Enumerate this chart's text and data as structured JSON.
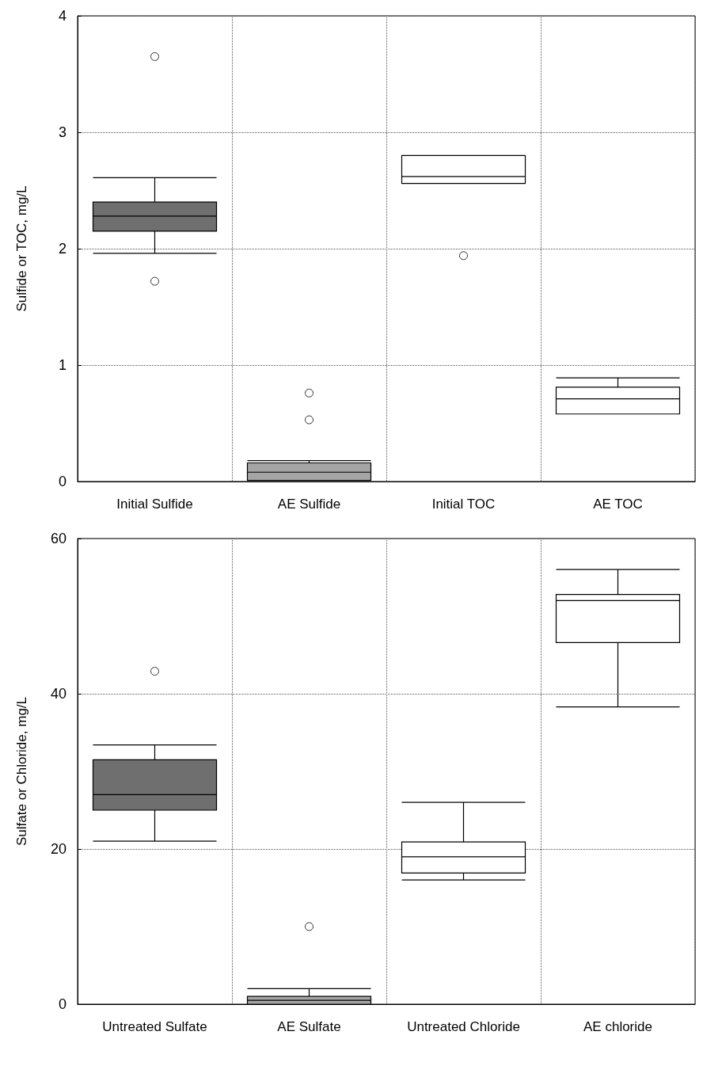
{
  "chart_data": [
    {
      "type": "box",
      "ylabel": "Sulfide or TOC, mg/L",
      "categories": [
        "Initial Sulfide",
        "AE Sulfide",
        "Initial TOC",
        "AE TOC"
      ],
      "boxes": [
        {
          "low": 1.96,
          "q1": 2.15,
          "median": 2.28,
          "q3": 2.4,
          "high": 2.61,
          "outliers": [
            3.65,
            1.72
          ]
        },
        {
          "low": 0.01,
          "q1": 0.01,
          "median": 0.08,
          "q3": 0.16,
          "high": 0.18,
          "outliers": [
            0.76,
            0.53
          ]
        },
        {
          "low": 2.56,
          "q1": 2.56,
          "median": 2.62,
          "q3": 2.8,
          "high": 2.8,
          "outliers": [
            1.94
          ]
        },
        {
          "low": 0.58,
          "q1": 0.58,
          "median": 0.71,
          "q3": 0.81,
          "high": 0.89
        }
      ],
      "colors": [
        "#6f6f6f",
        "#a5a5a5",
        "#ffffff",
        "#ffffff"
      ],
      "ylim": [
        0,
        4
      ],
      "yticks": [
        0,
        1,
        2,
        3,
        4
      ],
      "grid": true
    },
    {
      "type": "box",
      "ylabel": "Sulfate or Chloride, mg/L",
      "categories": [
        "Untreated Sulfate",
        "AE Sulfate",
        "Untreated Chloride",
        "AE chloride"
      ],
      "boxes": [
        {
          "low": 21,
          "q1": 25,
          "median": 27,
          "q3": 31.5,
          "high": 33.4,
          "outliers": [
            42.9
          ]
        },
        {
          "low": 0,
          "q1": 0,
          "median": 0.5,
          "q3": 1,
          "high": 2,
          "outliers": [
            10
          ]
        },
        {
          "low": 16,
          "q1": 16.9,
          "median": 19,
          "q3": 20.9,
          "high": 26
        },
        {
          "low": 38.3,
          "q1": 46.6,
          "median": 52,
          "q3": 52.8,
          "high": 56
        }
      ],
      "colors": [
        "#6f6f6f",
        "#a5a5a5",
        "#ffffff",
        "#ffffff"
      ],
      "ylim": [
        0,
        60
      ],
      "yticks": [
        0,
        20,
        40,
        60
      ],
      "grid": true
    }
  ]
}
